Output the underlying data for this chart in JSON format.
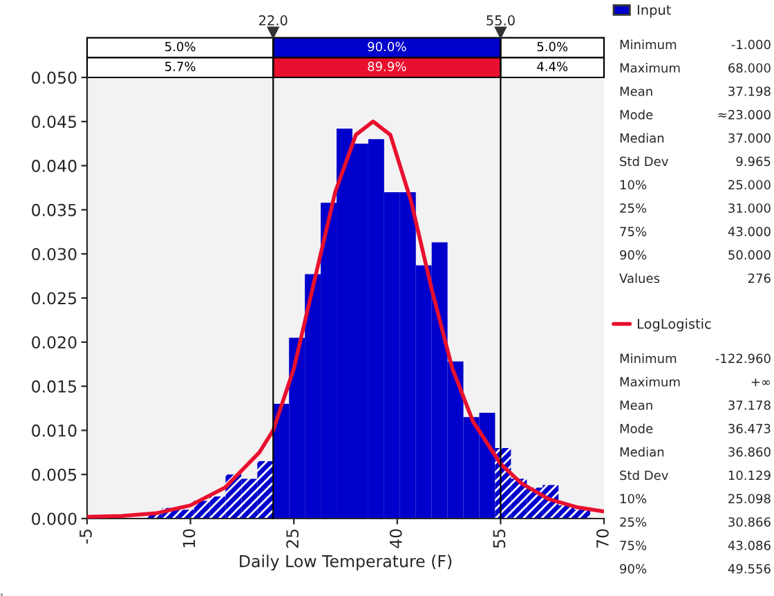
{
  "chart_data": {
    "type": "histogram",
    "xlabel": "Daily Low Temperature (F)",
    "bins": [
      -1,
      1.3,
      3.6,
      5.9,
      8.2,
      10.5,
      12.8,
      15.1,
      17.4,
      19.7,
      22.0,
      24.3,
      26.6,
      28.9,
      31.2,
      33.5,
      35.8,
      38.1,
      40.4,
      42.7,
      45.0,
      47.3,
      49.6,
      51.9,
      54.2,
      56.5,
      58.8,
      61.1,
      63.4,
      65.7,
      68.0
    ],
    "series": [
      {
        "name": "Input",
        "color": "#0000cc",
        "values": [
          null,
          null,
          0.0005,
          0.0012,
          0.001,
          0.002,
          0.0025,
          0.005,
          0.0045,
          0.0065,
          0.013,
          0.0205,
          0.0277,
          0.0358,
          0.0442,
          0.0425,
          0.043,
          0.037,
          0.037,
          0.0287,
          0.0313,
          0.0178,
          0.0115,
          0.012,
          0.008,
          0.0045,
          0.0035,
          0.0038,
          0.0015,
          0.001
        ]
      },
      {
        "name": "LogLogistic",
        "type": "line",
        "color": "#e8102e",
        "x": [
          -5,
          0,
          5,
          10,
          15,
          20,
          22,
          25,
          28,
          31,
          34,
          36.5,
          39,
          42,
          45,
          48,
          51,
          55,
          58,
          62,
          66,
          70
        ],
        "values": [
          0.0002,
          0.0003,
          0.0006,
          0.0015,
          0.0035,
          0.0075,
          0.01,
          0.017,
          0.027,
          0.037,
          0.0435,
          0.045,
          0.0435,
          0.036,
          0.026,
          0.017,
          0.011,
          0.0062,
          0.004,
          0.0022,
          0.0013,
          0.0008
        ]
      }
    ],
    "xlim": [
      -5,
      70
    ],
    "xticks": [
      -5,
      10,
      25,
      40,
      55,
      70
    ],
    "ylim": [
      0,
      0.05
    ],
    "yticks": [
      {
        "value": 0,
        "label": "0.000"
      },
      {
        "value": 0.005,
        "label": "0.005"
      },
      {
        "value": 0.01,
        "label": "0.010"
      },
      {
        "value": 0.015,
        "label": "0.015"
      },
      {
        "value": 0.02,
        "label": "0.020"
      },
      {
        "value": 0.025,
        "label": "0.025"
      },
      {
        "value": 0.03,
        "label": "0.030"
      },
      {
        "value": 0.035,
        "label": "0.035"
      },
      {
        "value": 0.04,
        "label": "0.040"
      },
      {
        "value": 0.045,
        "label": "0.045"
      },
      {
        "value": 0.05,
        "label": "0.050"
      }
    ],
    "ref_lines": [
      {
        "axis": "x",
        "value": 22,
        "label": "22.0"
      },
      {
        "axis": "x",
        "value": 55,
        "label": "55.0"
      }
    ],
    "annotations": [
      "5.0%",
      "90.0%",
      "5.0%",
      "5.7%",
      "89.9%",
      "4.4%",
      "Minimum\t-1.000",
      "Maximum\t68.000",
      "Mean\t37.198",
      "Mode\t≈23.000",
      "Median\t37.000",
      "Std Dev\t9.965",
      "10%\t25.000",
      "25%\t31.000",
      "75%\t43.000",
      "90%\t50.000",
      "Values\t276",
      "Minimum\t-122.960",
      "Maximum\t+∞",
      "Mean\t37.178",
      "Mode\t36.473",
      "Median\t36.860",
      "Std Dev\t10.129",
      "10%\t25.098",
      "25%\t30.866",
      "75%\t43.086",
      "90%\t49.556"
    ],
    "grid": false,
    "legend": "right"
  }
}
